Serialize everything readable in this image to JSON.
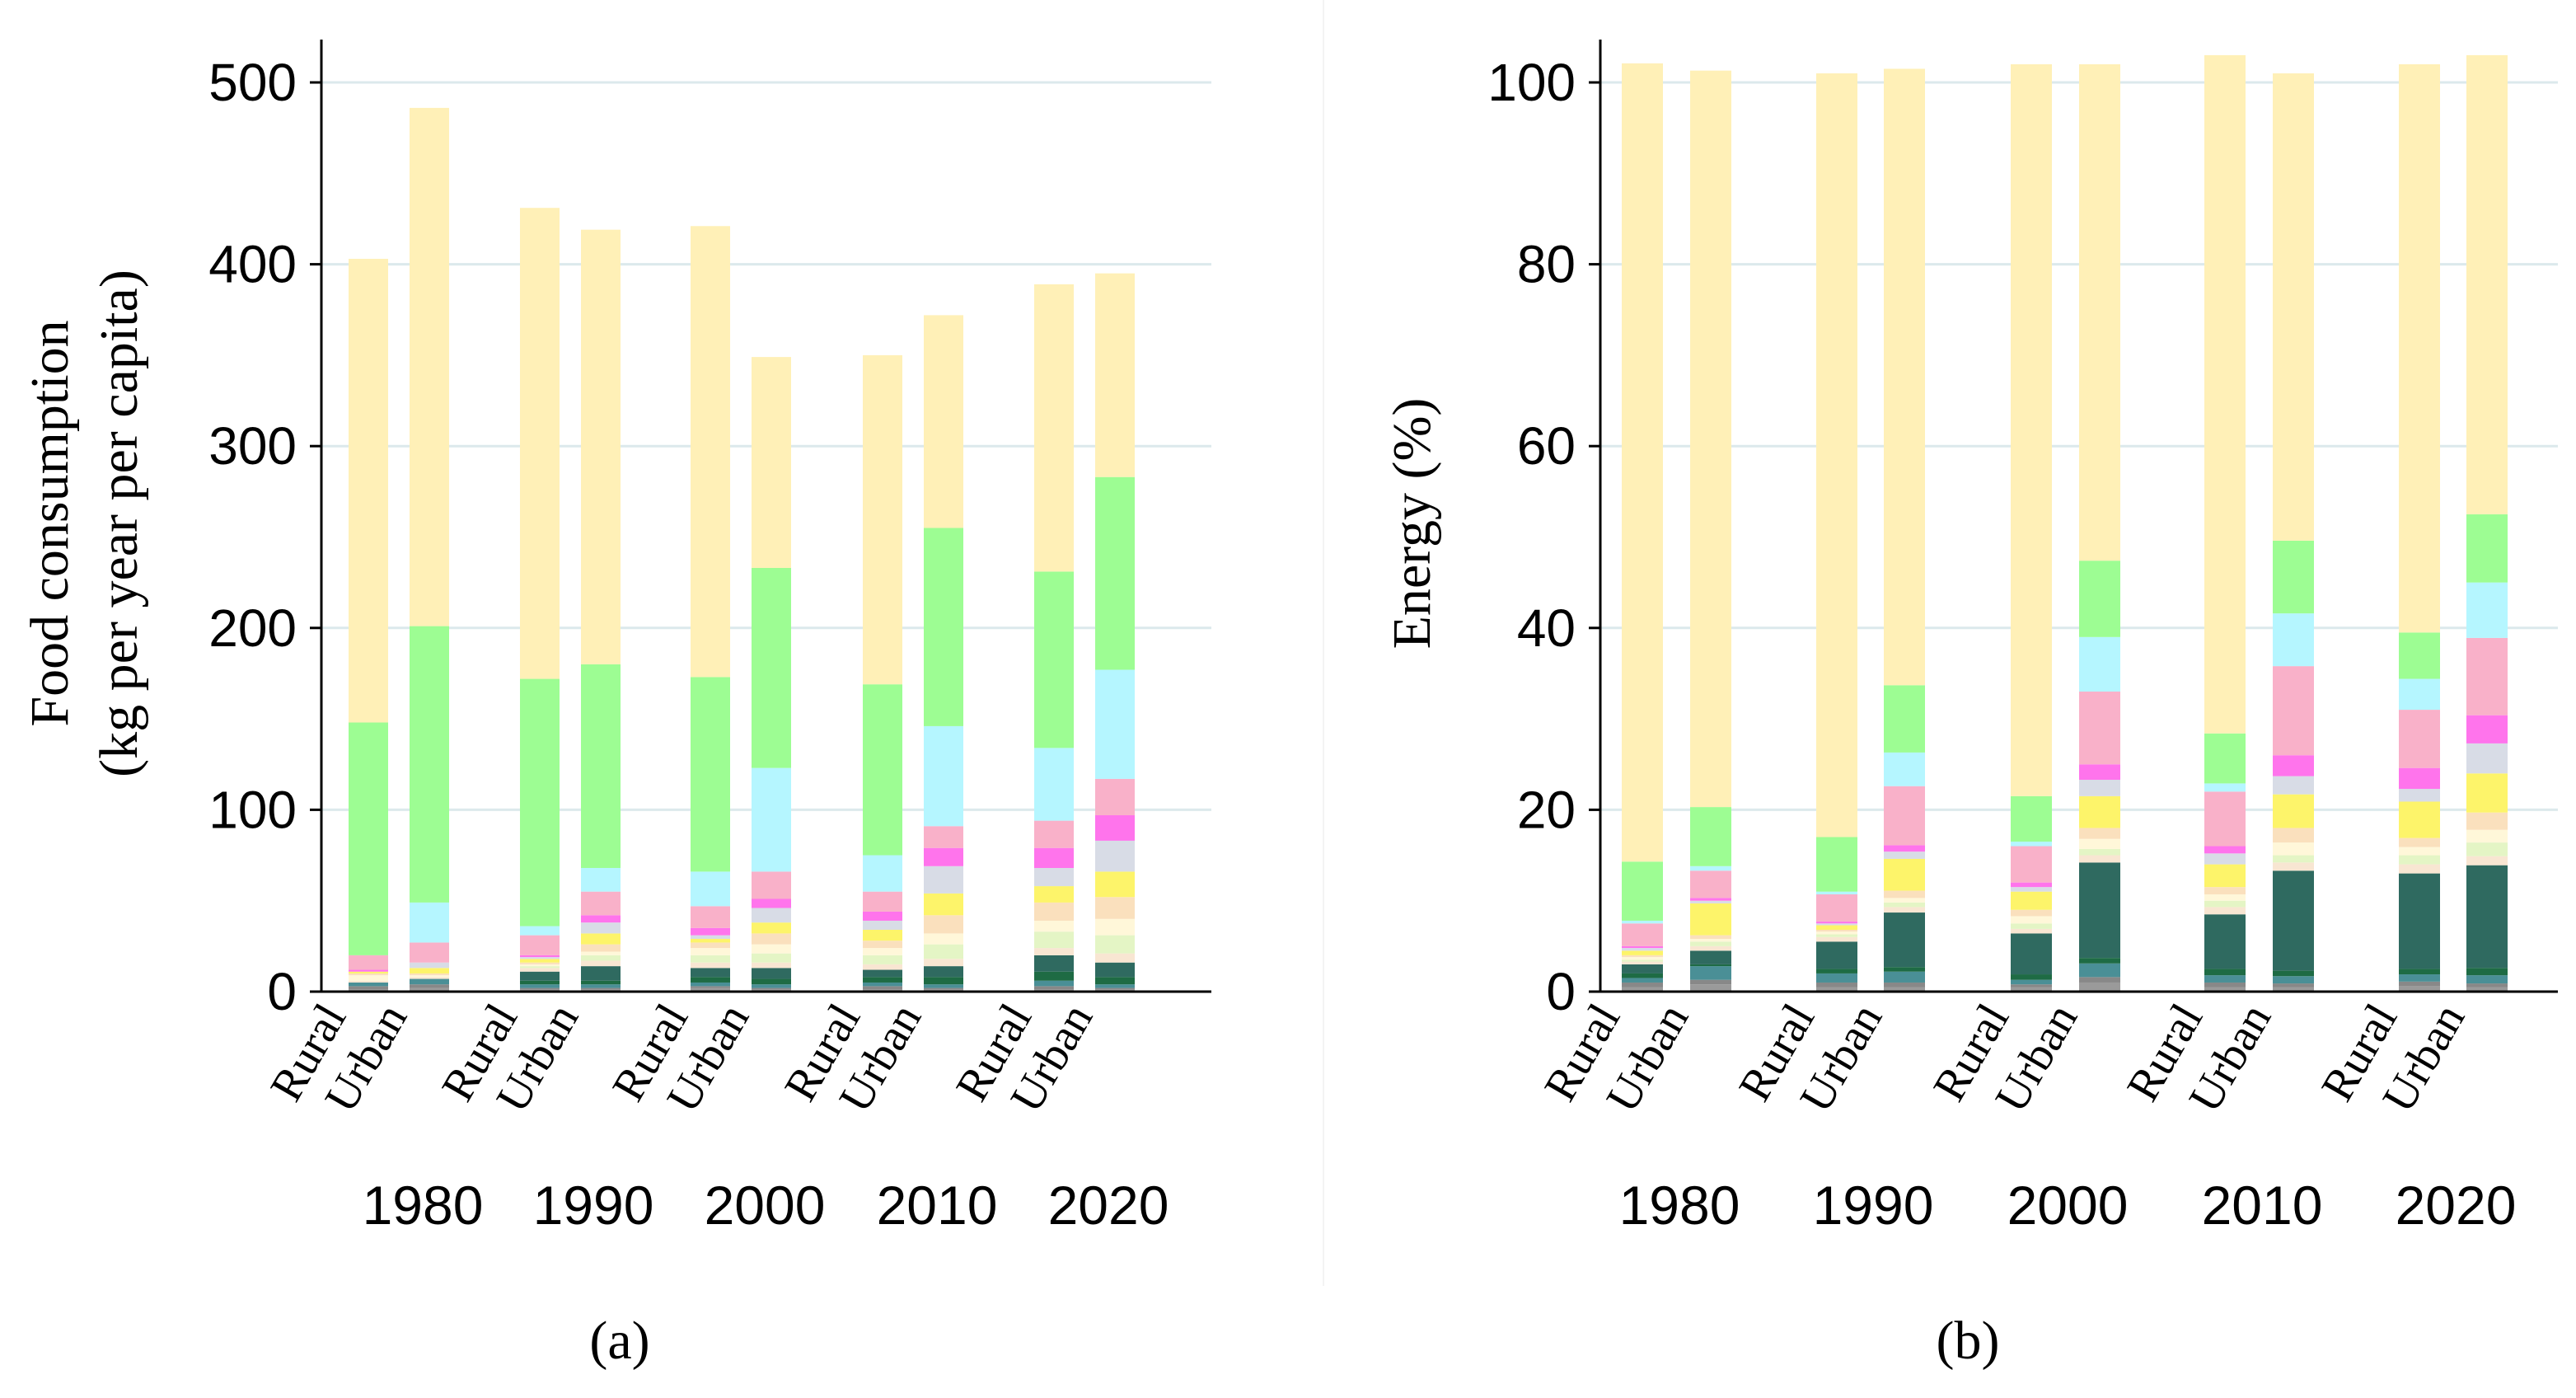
{
  "chart_data": [
    {
      "type": "bar",
      "stacked": true,
      "panel_label": "(a)",
      "ylabel_line1": "Food consumption",
      "ylabel_line2": "(kg per year per capita)",
      "xlabel": "",
      "ylim": [
        0,
        500
      ],
      "yticks": [
        "0",
        "100",
        "200",
        "300",
        "400",
        "500"
      ],
      "grid": true,
      "groups": [
        "1980",
        "1990",
        "2000",
        "2010",
        "2020"
      ],
      "categories": [
        "Rural",
        "Urban"
      ],
      "stack_colors": [
        "#9a9a9a",
        "#888888",
        "#4a8f96",
        "#1e6b44",
        "#2f6a60",
        "#f8e6d2",
        "#e4f5c5",
        "#fff7d9",
        "#fae0bd",
        "#fdf46a",
        "#d8dce6",
        "#ff74ec",
        "#f9b1c9",
        "#b5f6ff",
        "#9dfd93",
        "#fff0b7"
      ],
      "bars": [
        {
          "group": "1980",
          "category": "Rural",
          "segments": [
            1,
            2,
            2,
            0,
            0,
            1,
            0,
            3,
            1,
            1,
            0,
            1,
            8,
            0,
            128,
            255
          ]
        },
        {
          "group": "1980",
          "category": "Urban",
          "segments": [
            2,
            2,
            3,
            0,
            0,
            1,
            0,
            1,
            1,
            3,
            3,
            0,
            11,
            22,
            152,
            285
          ]
        },
        {
          "group": "1990",
          "category": "Rural",
          "segments": [
            1,
            1,
            2,
            2,
            5,
            2,
            1,
            1,
            1,
            2,
            1,
            1,
            11,
            5,
            136,
            259
          ]
        },
        {
          "group": "1990",
          "category": "Urban",
          "segments": [
            1,
            1,
            2,
            2,
            8,
            3,
            3,
            2,
            4,
            6,
            6,
            4,
            13,
            13,
            112,
            239
          ]
        },
        {
          "group": "2000",
          "category": "Rural",
          "segments": [
            2,
            1,
            2,
            3,
            5,
            3,
            4,
            4,
            3,
            2,
            2,
            4,
            12,
            19,
            107,
            248
          ]
        },
        {
          "group": "2000",
          "category": "Urban",
          "segments": [
            1,
            1,
            2,
            3,
            6,
            3,
            5,
            5,
            6,
            6,
            8,
            5,
            15,
            57,
            110,
            116
          ]
        },
        {
          "group": "2010",
          "category": "Rural",
          "segments": [
            1,
            2,
            2,
            3,
            4,
            3,
            5,
            4,
            4,
            6,
            5,
            5,
            11,
            20,
            94,
            181
          ]
        },
        {
          "group": "2010",
          "category": "Urban",
          "segments": [
            1,
            1,
            2,
            4,
            6,
            4,
            8,
            6,
            10,
            12,
            15,
            10,
            12,
            55,
            109,
            117
          ]
        },
        {
          "group": "2020",
          "category": "Rural",
          "segments": [
            1,
            2,
            3,
            5,
            9,
            4,
            9,
            6,
            10,
            9,
            10,
            11,
            15,
            40,
            97,
            158
          ]
        },
        {
          "group": "2020",
          "category": "Urban",
          "segments": [
            1,
            1,
            2,
            4,
            8,
            5,
            10,
            9,
            12,
            14,
            17,
            14,
            20,
            60,
            106,
            112
          ]
        }
      ]
    },
    {
      "type": "bar",
      "stacked": true,
      "panel_label": "(b)",
      "ylabel": "Energy (%)",
      "xlabel": "",
      "ylim": [
        0,
        100
      ],
      "yticks": [
        "0",
        "20",
        "40",
        "60",
        "80",
        "100"
      ],
      "grid": true,
      "groups": [
        "1980",
        "1990",
        "2000",
        "2010",
        "2020"
      ],
      "categories": [
        "Rural",
        "Urban"
      ],
      "stack_colors": [
        "#9a9a9a",
        "#888888",
        "#4a8f96",
        "#1e6b44",
        "#2f6a60",
        "#f8e6d2",
        "#e4f5c5",
        "#fff7d9",
        "#fae0bd",
        "#fdf46a",
        "#d8dce6",
        "#ff74ec",
        "#f9b1c9",
        "#b5f6ff",
        "#9dfd93",
        "#fff0b7"
      ],
      "bars": [
        {
          "group": "1980",
          "category": "Rural",
          "segments": [
            0.5,
            0.5,
            0.5,
            0.5,
            1,
            0.3,
            0.2,
            0.3,
            0.2,
            0.5,
            0.3,
            0.2,
            2.5,
            0.3,
            6.5,
            87.8
          ]
        },
        {
          "group": "1980",
          "category": "Urban",
          "segments": [
            0.8,
            0.5,
            1.5,
            0.2,
            1.5,
            0.5,
            0.5,
            0.3,
            0.4,
            3.5,
            0.3,
            0.3,
            3,
            0.5,
            6.5,
            81.0
          ]
        },
        {
          "group": "1990",
          "category": "Rural",
          "segments": [
            0.5,
            0.5,
            1,
            0.5,
            3,
            0.5,
            0.3,
            0.3,
            0.2,
            0.5,
            0.2,
            0.2,
            3,
            0.3,
            6,
            84.0
          ]
        },
        {
          "group": "1990",
          "category": "Urban",
          "segments": [
            0.5,
            0.5,
            1.2,
            0.5,
            6,
            0.6,
            0.5,
            0.5,
            0.8,
            3.5,
            0.8,
            0.7,
            6.5,
            3.7,
            7.4,
            67.8
          ]
        },
        {
          "group": "2000",
          "category": "Rural",
          "segments": [
            0.5,
            0.3,
            0.5,
            0.6,
            4.5,
            0.5,
            0.6,
            0.8,
            0.7,
            2,
            0.5,
            0.5,
            4,
            0.5,
            5,
            80.5
          ]
        },
        {
          "group": "2000",
          "category": "Urban",
          "segments": [
            1,
            0.6,
            1.5,
            0.6,
            10.5,
            0.8,
            0.7,
            1.1,
            1.2,
            3.5,
            1.8,
            1.7,
            8,
            6,
            8.4,
            54.6
          ]
        },
        {
          "group": "2010",
          "category": "Rural",
          "segments": [
            0.5,
            0.5,
            0.8,
            0.7,
            6,
            0.8,
            0.7,
            0.7,
            0.8,
            2.5,
            1.2,
            0.8,
            6,
            0.9,
            5.5,
            74.6
          ]
        },
        {
          "group": "2010",
          "category": "Urban",
          "segments": [
            0.5,
            0.4,
            0.8,
            0.6,
            11,
            0.9,
            0.8,
            1.4,
            1.6,
            3.7,
            2,
            2.3,
            9.8,
            5.8,
            8,
            51.4
          ]
        },
        {
          "group": "2020",
          "category": "Rural",
          "segments": [
            0.6,
            0.5,
            0.8,
            0.6,
            10.5,
            1,
            1,
            0.9,
            1,
            4,
            1.4,
            2.3,
            6.4,
            3.4,
            5.1,
            62.5
          ]
        },
        {
          "group": "2020",
          "category": "Urban",
          "segments": [
            0.5,
            0.4,
            0.9,
            0.8,
            11.3,
            1,
            1.5,
            1.4,
            1.9,
            4.3,
            3.3,
            3.1,
            8.5,
            6.1,
            7.5,
            50.5
          ]
        }
      ]
    }
  ]
}
